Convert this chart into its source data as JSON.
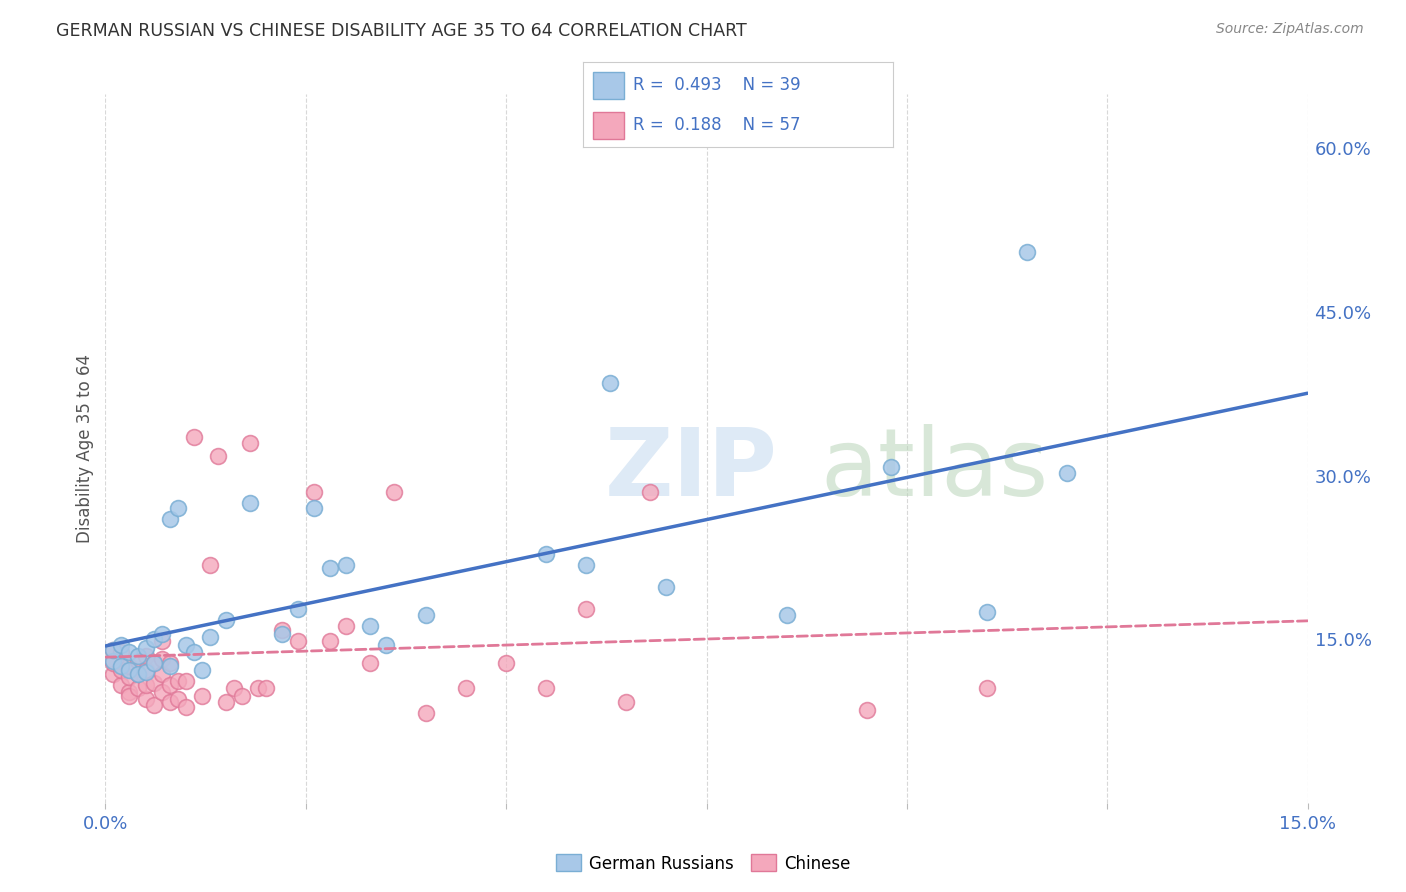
{
  "title": "GERMAN RUSSIAN VS CHINESE DISABILITY AGE 35 TO 64 CORRELATION CHART",
  "source": "Source: ZipAtlas.com",
  "ylabel": "Disability Age 35 to 64",
  "xlim": [
    0.0,
    0.15
  ],
  "ylim": [
    0.0,
    0.65
  ],
  "xticks": [
    0.0,
    0.025,
    0.05,
    0.075,
    0.1,
    0.125,
    0.15
  ],
  "xticklabels": [
    "0.0%",
    "",
    "",
    "",
    "",
    "",
    "15.0%"
  ],
  "yticks_right": [
    0.15,
    0.3,
    0.45,
    0.6
  ],
  "ytick_right_labels": [
    "15.0%",
    "30.0%",
    "45.0%",
    "60.0%"
  ],
  "background_color": "#ffffff",
  "grid_color": "#d8d8d8",
  "german_russian_fill": "#a8c8e8",
  "german_russian_edge": "#7aaed4",
  "chinese_fill": "#f4a8bc",
  "chinese_edge": "#e07898",
  "line_blue": "#4472c4",
  "line_pink": "#e07898",
  "R_german": 0.493,
  "N_german": 39,
  "R_chinese": 0.188,
  "N_chinese": 57,
  "german_russian_x": [
    0.001,
    0.001,
    0.002,
    0.002,
    0.003,
    0.003,
    0.004,
    0.004,
    0.005,
    0.005,
    0.006,
    0.006,
    0.007,
    0.008,
    0.008,
    0.009,
    0.01,
    0.011,
    0.012,
    0.013,
    0.015,
    0.018,
    0.022,
    0.024,
    0.026,
    0.028,
    0.03,
    0.033,
    0.035,
    0.04,
    0.055,
    0.06,
    0.063,
    0.07,
    0.085,
    0.098,
    0.11,
    0.115,
    0.12
  ],
  "german_russian_y": [
    0.13,
    0.14,
    0.125,
    0.145,
    0.122,
    0.138,
    0.118,
    0.135,
    0.12,
    0.142,
    0.128,
    0.15,
    0.155,
    0.125,
    0.26,
    0.27,
    0.145,
    0.138,
    0.122,
    0.152,
    0.168,
    0.275,
    0.155,
    0.178,
    0.27,
    0.215,
    0.218,
    0.162,
    0.145,
    0.172,
    0.228,
    0.218,
    0.385,
    0.198,
    0.172,
    0.308,
    0.175,
    0.505,
    0.302
  ],
  "chinese_x": [
    0.001,
    0.001,
    0.001,
    0.002,
    0.002,
    0.002,
    0.003,
    0.003,
    0.003,
    0.003,
    0.004,
    0.004,
    0.004,
    0.005,
    0.005,
    0.005,
    0.005,
    0.006,
    0.006,
    0.006,
    0.007,
    0.007,
    0.007,
    0.007,
    0.008,
    0.008,
    0.008,
    0.009,
    0.009,
    0.01,
    0.01,
    0.011,
    0.012,
    0.013,
    0.014,
    0.015,
    0.016,
    0.017,
    0.018,
    0.019,
    0.02,
    0.022,
    0.024,
    0.026,
    0.028,
    0.03,
    0.033,
    0.036,
    0.04,
    0.045,
    0.05,
    0.055,
    0.06,
    0.065,
    0.068,
    0.095,
    0.11
  ],
  "chinese_y": [
    0.118,
    0.128,
    0.14,
    0.108,
    0.122,
    0.138,
    0.102,
    0.115,
    0.125,
    0.098,
    0.105,
    0.118,
    0.13,
    0.095,
    0.108,
    0.122,
    0.135,
    0.09,
    0.11,
    0.128,
    0.102,
    0.118,
    0.132,
    0.148,
    0.092,
    0.108,
    0.128,
    0.095,
    0.112,
    0.088,
    0.112,
    0.335,
    0.098,
    0.218,
    0.318,
    0.092,
    0.105,
    0.098,
    0.33,
    0.105,
    0.105,
    0.158,
    0.148,
    0.285,
    0.148,
    0.162,
    0.128,
    0.285,
    0.082,
    0.105,
    0.128,
    0.105,
    0.178,
    0.092,
    0.285,
    0.085,
    0.105
  ]
}
